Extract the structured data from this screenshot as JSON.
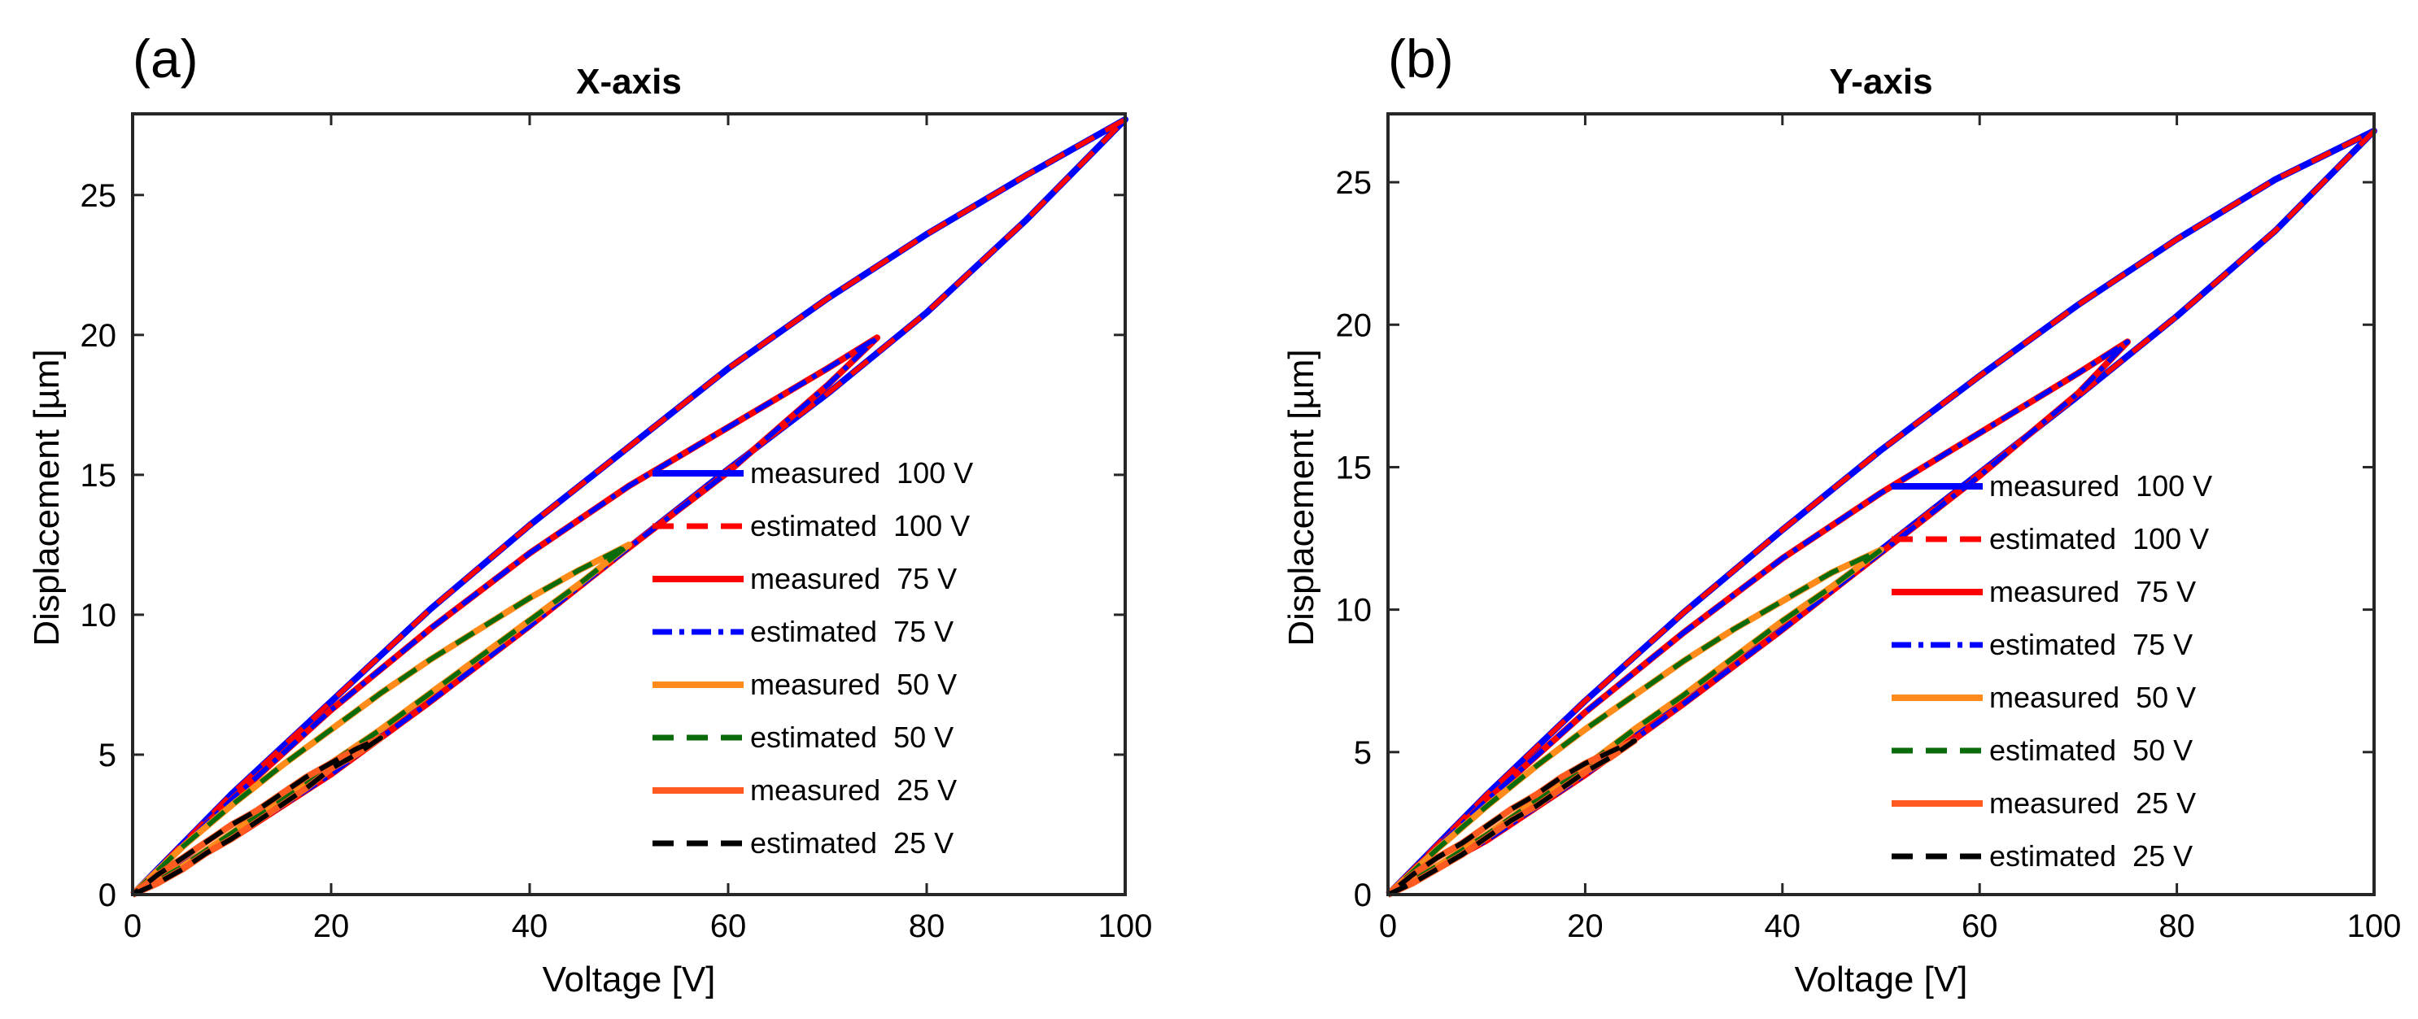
{
  "chart_data": [
    {
      "type": "line",
      "panel_label": "(a)",
      "title": "X-axis",
      "xlabel": "Voltage [V]",
      "ylabel": "Displacement [µm]",
      "xlim": [
        0,
        100
      ],
      "ylim": [
        0,
        27.9
      ],
      "xticks": [
        0,
        20,
        40,
        60,
        80,
        100
      ],
      "yticks": [
        0,
        5,
        10,
        15,
        20,
        25
      ],
      "grid": false,
      "legend_position": "bottom-right",
      "series": [
        {
          "name": "measured  100 V",
          "amplitude": 100,
          "color": "#0000ff",
          "style": "solid",
          "x": [
            0,
            10,
            20,
            30,
            40,
            50,
            60,
            70,
            80,
            90,
            100,
            90,
            80,
            70,
            60,
            50,
            40,
            30,
            20,
            10,
            0
          ],
          "y": [
            0,
            2.1,
            4.5,
            7.0,
            9.7,
            12.4,
            15.2,
            17.9,
            20.8,
            24.1,
            27.7,
            25.7,
            23.6,
            21.3,
            18.8,
            16.0,
            13.2,
            10.2,
            6.9,
            3.6,
            0
          ]
        },
        {
          "name": "estimated  100 V",
          "amplitude": 100,
          "color": "#ff0000",
          "style": "dashed",
          "x": [
            0,
            10,
            20,
            30,
            40,
            50,
            60,
            70,
            80,
            90,
            100,
            90,
            80,
            70,
            60,
            50,
            40,
            30,
            20,
            10,
            0
          ],
          "y": [
            0,
            2.1,
            4.5,
            7.0,
            9.7,
            12.4,
            15.2,
            17.9,
            20.8,
            24.1,
            27.7,
            25.7,
            23.6,
            21.3,
            18.8,
            16.0,
            13.2,
            10.2,
            6.9,
            3.6,
            0
          ]
        },
        {
          "name": "measured  75 V",
          "amplitude": 75,
          "color": "#ff0000",
          "style": "solid",
          "x": [
            0,
            10,
            20,
            30,
            40,
            50,
            60,
            70,
            75,
            70,
            60,
            50,
            40,
            30,
            20,
            10,
            0
          ],
          "y": [
            0,
            2.0,
            4.3,
            6.9,
            9.6,
            12.4,
            15.1,
            18.2,
            19.9,
            18.8,
            16.7,
            14.6,
            12.2,
            9.5,
            6.6,
            3.4,
            0
          ]
        },
        {
          "name": "estimated  75 V",
          "amplitude": 75,
          "color": "#0000ff",
          "style": "dashdot",
          "x": [
            0,
            10,
            20,
            30,
            40,
            50,
            60,
            70,
            75,
            70,
            60,
            50,
            40,
            30,
            20,
            10,
            0
          ],
          "y": [
            0,
            2.0,
            4.3,
            6.9,
            9.6,
            12.4,
            15.1,
            18.2,
            19.9,
            18.8,
            16.7,
            14.6,
            12.2,
            9.5,
            6.6,
            3.4,
            0
          ]
        },
        {
          "name": "measured  50 V",
          "amplitude": 50,
          "color": "#ff8c1a",
          "style": "solid",
          "x": [
            0,
            5,
            10,
            15,
            20,
            25,
            30,
            35,
            40,
            45,
            50,
            45,
            40,
            35,
            30,
            25,
            20,
            15,
            10,
            5,
            0
          ],
          "y": [
            0,
            1.0,
            2.2,
            3.4,
            4.7,
            5.9,
            7.2,
            8.5,
            9.8,
            11.1,
            12.5,
            11.6,
            10.6,
            9.5,
            8.4,
            7.2,
            5.9,
            4.6,
            3.2,
            1.7,
            0
          ]
        },
        {
          "name": "estimated  50 V",
          "amplitude": 50,
          "color": "#0a6b0a",
          "style": "dashed",
          "x": [
            0,
            5,
            10,
            15,
            20,
            25,
            30,
            35,
            40,
            45,
            50,
            45,
            40,
            35,
            30,
            25,
            20,
            15,
            10,
            5,
            0
          ],
          "y": [
            0,
            1.0,
            2.2,
            3.4,
            4.7,
            5.9,
            7.2,
            8.5,
            9.8,
            11.1,
            12.5,
            11.6,
            10.6,
            9.5,
            8.4,
            7.2,
            5.9,
            4.6,
            3.2,
            1.7,
            0
          ]
        },
        {
          "name": "measured  25 V",
          "amplitude": 25,
          "color": "#ff5a1f",
          "style": "solid",
          "x": [
            0,
            2.5,
            5,
            7.5,
            10,
            12.5,
            15,
            17.5,
            20,
            22.5,
            25,
            22.5,
            20,
            17.5,
            15,
            12.5,
            10,
            7.5,
            5,
            2.5,
            0
          ],
          "y": [
            0,
            0.4,
            0.9,
            1.5,
            2.0,
            2.6,
            3.2,
            3.8,
            4.5,
            5.0,
            5.6,
            5.2,
            4.7,
            4.2,
            3.6,
            3.0,
            2.5,
            1.9,
            1.3,
            0.7,
            0
          ]
        },
        {
          "name": "estimated  25 V",
          "amplitude": 25,
          "color": "#000000",
          "style": "dashed",
          "x": [
            0,
            2.5,
            5,
            7.5,
            10,
            12.5,
            15,
            17.5,
            20,
            22.5,
            25,
            22.5,
            20,
            17.5,
            15,
            12.5,
            10,
            7.5,
            5,
            2.5,
            0
          ],
          "y": [
            0,
            0.4,
            0.9,
            1.5,
            2.0,
            2.6,
            3.2,
            3.8,
            4.5,
            5.0,
            5.6,
            5.2,
            4.7,
            4.2,
            3.6,
            3.0,
            2.5,
            1.9,
            1.3,
            0.7,
            0
          ]
        }
      ]
    },
    {
      "type": "line",
      "panel_label": "(b)",
      "title": "Y-axis",
      "xlabel": "Voltage [V]",
      "ylabel": "Displacement [µm]",
      "xlim": [
        0,
        100
      ],
      "ylim": [
        0,
        27.4
      ],
      "xticks": [
        0,
        20,
        40,
        60,
        80,
        100
      ],
      "yticks": [
        0,
        5,
        10,
        15,
        20,
        25
      ],
      "grid": false,
      "legend_position": "bottom-right",
      "series": [
        {
          "name": "measured  100 V",
          "amplitude": 100,
          "color": "#0000ff",
          "style": "solid",
          "x": [
            0,
            10,
            20,
            30,
            40,
            50,
            60,
            70,
            80,
            90,
            100,
            90,
            80,
            70,
            60,
            50,
            40,
            30,
            20,
            10,
            0
          ],
          "y": [
            0,
            2.0,
            4.4,
            6.9,
            9.5,
            12.1,
            14.8,
            17.5,
            20.3,
            23.3,
            26.8,
            25.1,
            23.0,
            20.7,
            18.2,
            15.6,
            12.8,
            9.9,
            6.8,
            3.5,
            0
          ]
        },
        {
          "name": "estimated  100 V",
          "amplitude": 100,
          "color": "#ff0000",
          "style": "dashed",
          "x": [
            0,
            10,
            20,
            30,
            40,
            50,
            60,
            70,
            80,
            90,
            100,
            90,
            80,
            70,
            60,
            50,
            40,
            30,
            20,
            10,
            0
          ],
          "y": [
            0,
            2.0,
            4.4,
            6.9,
            9.5,
            12.1,
            14.8,
            17.5,
            20.3,
            23.3,
            26.8,
            25.1,
            23.0,
            20.7,
            18.2,
            15.6,
            12.8,
            9.9,
            6.8,
            3.5,
            0
          ]
        },
        {
          "name": "measured  75 V",
          "amplitude": 75,
          "color": "#ff0000",
          "style": "solid",
          "x": [
            0,
            10,
            20,
            30,
            40,
            50,
            60,
            70,
            75,
            70,
            60,
            50,
            40,
            30,
            20,
            10,
            0
          ],
          "y": [
            0,
            1.9,
            4.2,
            6.7,
            9.3,
            12.0,
            14.7,
            17.6,
            19.4,
            18.3,
            16.2,
            14.1,
            11.8,
            9.2,
            6.4,
            3.3,
            0
          ]
        },
        {
          "name": "estimated  75 V",
          "amplitude": 75,
          "color": "#0000ff",
          "style": "dashdot",
          "x": [
            0,
            10,
            20,
            30,
            40,
            50,
            60,
            70,
            75,
            70,
            60,
            50,
            40,
            30,
            20,
            10,
            0
          ],
          "y": [
            0,
            1.9,
            4.2,
            6.7,
            9.3,
            12.0,
            14.7,
            17.6,
            19.4,
            18.3,
            16.2,
            14.1,
            11.8,
            9.2,
            6.4,
            3.3,
            0
          ]
        },
        {
          "name": "measured  50 V",
          "amplitude": 50,
          "color": "#ff8c1a",
          "style": "solid",
          "x": [
            0,
            5,
            10,
            15,
            20,
            25,
            30,
            35,
            40,
            45,
            50,
            45,
            40,
            35,
            30,
            25,
            20,
            15,
            10,
            5,
            0
          ],
          "y": [
            0,
            1.0,
            2.1,
            3.3,
            4.5,
            5.8,
            7.0,
            8.3,
            9.6,
            10.8,
            12.1,
            11.3,
            10.3,
            9.3,
            8.2,
            7.0,
            5.8,
            4.5,
            3.1,
            1.6,
            0
          ]
        },
        {
          "name": "estimated  50 V",
          "amplitude": 50,
          "color": "#0a6b0a",
          "style": "dashed",
          "x": [
            0,
            5,
            10,
            15,
            20,
            25,
            30,
            35,
            40,
            45,
            50,
            45,
            40,
            35,
            30,
            25,
            20,
            15,
            10,
            5,
            0
          ],
          "y": [
            0,
            1.0,
            2.1,
            3.3,
            4.5,
            5.8,
            7.0,
            8.3,
            9.6,
            10.8,
            12.1,
            11.3,
            10.3,
            9.3,
            8.2,
            7.0,
            5.8,
            4.5,
            3.1,
            1.6,
            0
          ]
        },
        {
          "name": "measured  25 V",
          "amplitude": 25,
          "color": "#ff5a1f",
          "style": "solid",
          "x": [
            0,
            2.5,
            5,
            7.5,
            10,
            12.5,
            15,
            17.5,
            20,
            22.5,
            25,
            22.5,
            20,
            17.5,
            15,
            12.5,
            10,
            7.5,
            5,
            2.5,
            0
          ],
          "y": [
            0,
            0.4,
            0.9,
            1.4,
            2.0,
            2.6,
            3.1,
            3.7,
            4.3,
            4.8,
            5.4,
            5.0,
            4.6,
            4.1,
            3.5,
            3.0,
            2.4,
            1.8,
            1.3,
            0.7,
            0
          ]
        },
        {
          "name": "estimated  25 V",
          "amplitude": 25,
          "color": "#000000",
          "style": "dashed",
          "x": [
            0,
            2.5,
            5,
            7.5,
            10,
            12.5,
            15,
            17.5,
            20,
            22.5,
            25,
            22.5,
            20,
            17.5,
            15,
            12.5,
            10,
            7.5,
            5,
            2.5,
            0
          ],
          "y": [
            0,
            0.4,
            0.9,
            1.4,
            2.0,
            2.6,
            3.1,
            3.7,
            4.3,
            4.8,
            5.4,
            5.0,
            4.6,
            4.1,
            3.5,
            3.0,
            2.4,
            1.8,
            1.3,
            0.7,
            0
          ]
        }
      ]
    }
  ]
}
